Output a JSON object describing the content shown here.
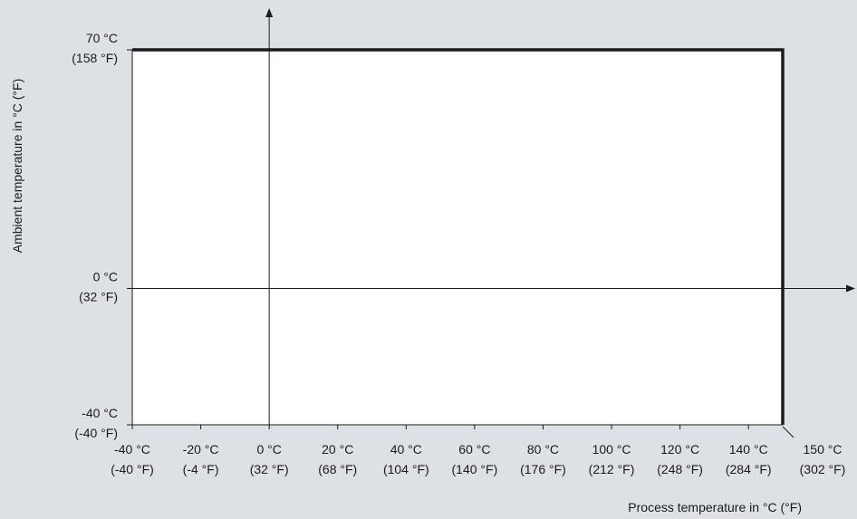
{
  "chart_data": {
    "type": "area",
    "xlabel": "Process temperature in °C (°F)",
    "ylabel": "Ambient temperature in °C (°F)",
    "xlim": [
      -40,
      150
    ],
    "ylim": [
      -40,
      70
    ],
    "x_ticks": [
      {
        "value": -40,
        "c": "-40 °C",
        "f": "(-40 °F)"
      },
      {
        "value": -20,
        "c": "-20 °C",
        "f": "(-4 °F)"
      },
      {
        "value": 0,
        "c": "0 °C",
        "f": "(32 °F)"
      },
      {
        "value": 20,
        "c": "20 °C",
        "f": "(68 °F)"
      },
      {
        "value": 40,
        "c": "40 °C",
        "f": "(104 °F)"
      },
      {
        "value": 60,
        "c": "60 °C",
        "f": "(140 °F)"
      },
      {
        "value": 80,
        "c": "80 °C",
        "f": "(176 °F)"
      },
      {
        "value": 100,
        "c": "100 °C",
        "f": "(212 °F)"
      },
      {
        "value": 120,
        "c": "120 °C",
        "f": "(248 °F)"
      },
      {
        "value": 140,
        "c": "140 °C",
        "f": "(284 °F)"
      },
      {
        "value": 150,
        "c": "150 °C",
        "f": "(302 °F)"
      }
    ],
    "y_ticks": [
      {
        "value": 70,
        "c": "70 °C",
        "f": "(158 °F)"
      },
      {
        "value": 0,
        "c": "0 °C",
        "f": "(32 °F)"
      },
      {
        "value": -40,
        "c": "-40 °C",
        "f": "(-40 °F)"
      }
    ],
    "region": {
      "x": [
        -40,
        150
      ],
      "y": [
        -40,
        70
      ],
      "fill": "#ffffff"
    },
    "boundary": [
      [
        -40,
        70
      ],
      [
        150,
        70
      ],
      [
        150,
        -40
      ]
    ],
    "colors": {
      "background": "#dde1e5",
      "region": "#ffffff",
      "boundary": "#1a1a1a",
      "axis": "#1a1a1a"
    }
  }
}
